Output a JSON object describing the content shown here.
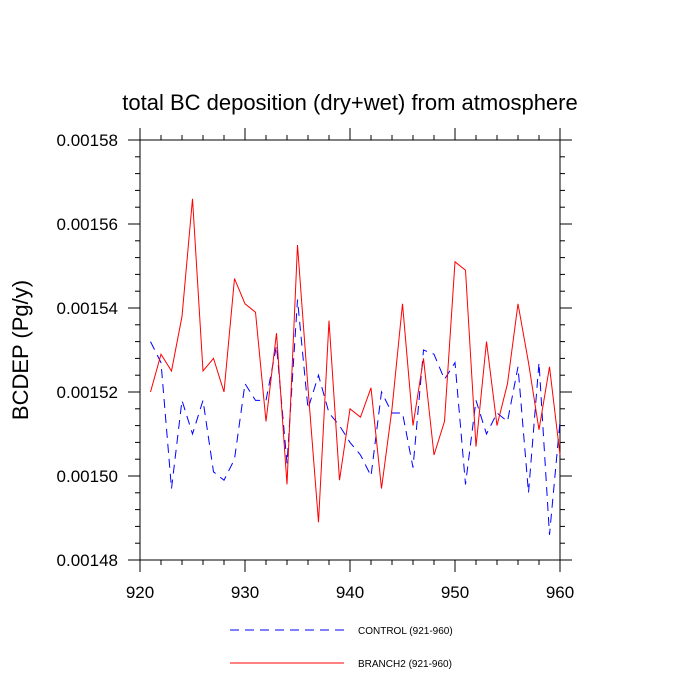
{
  "chart_data": {
    "type": "line",
    "title": "total BC deposition (dry+wet) from atmosphere",
    "xlabel": "",
    "ylabel": "BCDEP  (Pg/y)",
    "xlim": [
      920,
      960
    ],
    "ylim": [
      0.00148,
      0.00158
    ],
    "xticks": [
      920,
      930,
      940,
      950,
      960
    ],
    "xtick_labels": [
      "920",
      "930",
      "940",
      "950",
      "960"
    ],
    "yticks": [
      0.00148,
      0.0015,
      0.00152,
      0.00154,
      0.00156,
      0.00158
    ],
    "ytick_labels": [
      "0.00148",
      "0.00150",
      "0.00152",
      "0.00154",
      "0.00156",
      "0.00158"
    ],
    "x": [
      921,
      922,
      923,
      924,
      925,
      926,
      927,
      928,
      929,
      930,
      931,
      932,
      933,
      934,
      935,
      936,
      937,
      938,
      939,
      940,
      941,
      942,
      943,
      944,
      945,
      946,
      947,
      948,
      949,
      950,
      951,
      952,
      953,
      954,
      955,
      956,
      957,
      958,
      959,
      960
    ],
    "series": [
      {
        "name": "CONTROL (921-960)",
        "color": "#0000ff",
        "dashed": true,
        "values": [
          0.001532,
          0.001527,
          0.001497,
          0.001518,
          0.00151,
          0.001518,
          0.001501,
          0.001499,
          0.001504,
          0.001522,
          0.001518,
          0.001518,
          0.001531,
          0.001503,
          0.001542,
          0.001516,
          0.001524,
          0.001515,
          0.001512,
          0.001508,
          0.001505,
          0.0015,
          0.00152,
          0.001515,
          0.001515,
          0.001502,
          0.00153,
          0.001529,
          0.001523,
          0.001527,
          0.001498,
          0.001518,
          0.00151,
          0.001515,
          0.001513,
          0.001526,
          0.001496,
          0.001527,
          0.001486,
          0.001513
        ]
      },
      {
        "name": "BRANCH2 (921-960)",
        "color": "#ff0000",
        "dashed": false,
        "values": [
          0.00152,
          0.001529,
          0.001525,
          0.001538,
          0.001566,
          0.001525,
          0.001528,
          0.00152,
          0.001547,
          0.001541,
          0.001539,
          0.001513,
          0.001534,
          0.001498,
          0.001555,
          0.001521,
          0.001489,
          0.001537,
          0.001499,
          0.001516,
          0.001514,
          0.001521,
          0.001497,
          0.001516,
          0.001541,
          0.001512,
          0.001528,
          0.001505,
          0.001513,
          0.001551,
          0.001549,
          0.001507,
          0.001532,
          0.001512,
          0.001522,
          0.001541,
          0.001527,
          0.001511,
          0.001526,
          0.001505
        ]
      }
    ],
    "legend_position": "bottom"
  }
}
